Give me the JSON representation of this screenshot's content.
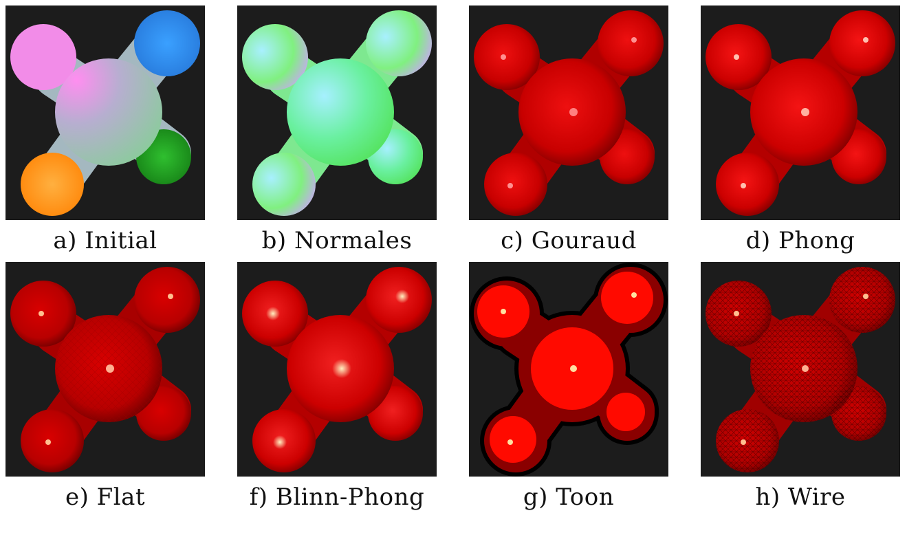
{
  "panels": [
    {
      "caption": "a) Initial",
      "style": "initial"
    },
    {
      "caption": "b) Normales",
      "style": "normals"
    },
    {
      "caption": "c) Gouraud",
      "style": "gouraud"
    },
    {
      "caption": "d) Phong",
      "style": "phong"
    },
    {
      "caption": "e) Flat",
      "style": "flat"
    },
    {
      "caption": "f) Blinn-Phong",
      "style": "blinn"
    },
    {
      "caption": "g) Toon",
      "style": "toon"
    },
    {
      "caption": "h) Wire",
      "style": "wire"
    }
  ],
  "colors": {
    "background": "#1c1c1c",
    "shape_red": "#d40000",
    "toon_red": "#ff0a00",
    "toon_dark": "#8a0000"
  }
}
